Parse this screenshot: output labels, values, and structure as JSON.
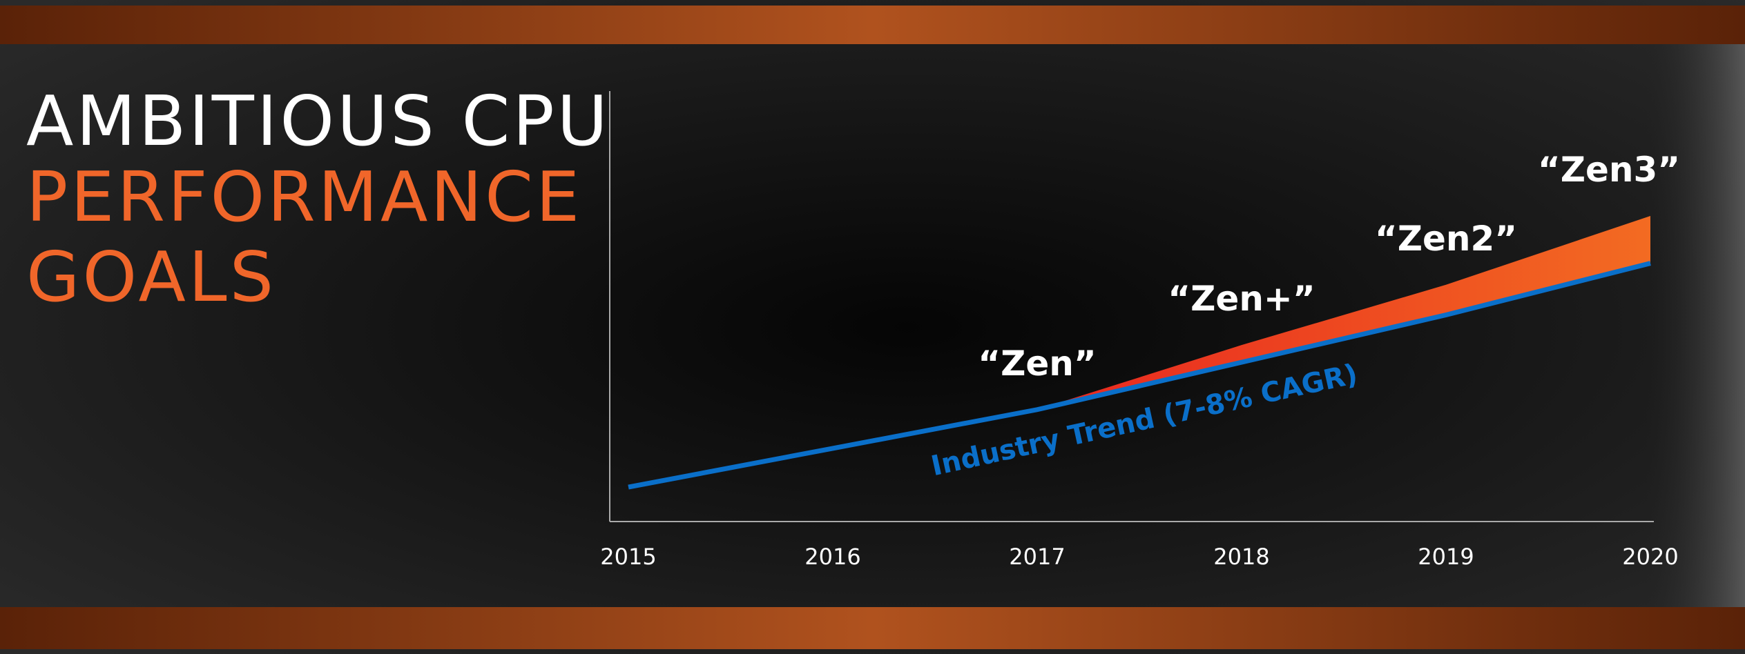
{
  "chart_data": {
    "type": "line",
    "title_lines": [
      "AMBITIOUS CPU",
      "PERFORMANCE",
      "GOALS"
    ],
    "title_colors": [
      "#ffffff",
      "#f0662a",
      "#f0662a"
    ],
    "categories": [
      "2015",
      "2016",
      "2017",
      "2018",
      "2019",
      "2020"
    ],
    "ylim": [
      0,
      100
    ],
    "series": [
      {
        "name": "Industry Trend (7-8% CAGR)",
        "color": "#0a6fc9",
        "values": [
          8,
          17,
          26,
          37,
          48,
          60
        ]
      },
      {
        "color": "#f0662a",
        "values": [
          null,
          null,
          26,
          41,
          55,
          71
        ],
        "point_labels": [
          null,
          null,
          "“Zen”",
          "“Zen+”",
          "“Zen2”",
          "“Zen3”"
        ]
      }
    ],
    "area_between": true
  }
}
